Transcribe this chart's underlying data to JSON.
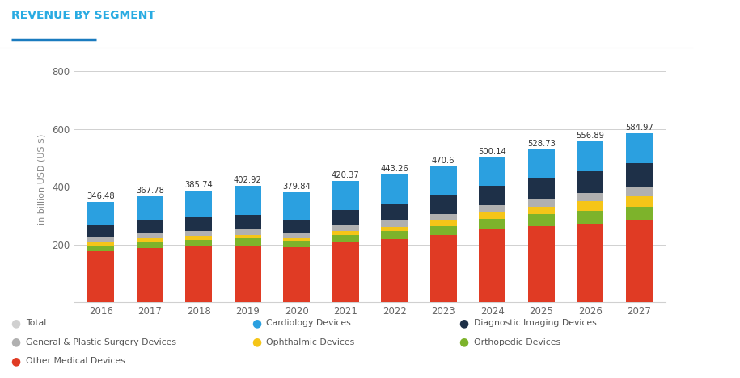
{
  "years": [
    2016,
    2017,
    2018,
    2019,
    2020,
    2021,
    2022,
    2023,
    2024,
    2025,
    2026,
    2027
  ],
  "totals": [
    346.48,
    367.78,
    385.74,
    402.92,
    379.84,
    420.37,
    443.26,
    470.6,
    500.14,
    528.73,
    556.89,
    584.97
  ],
  "segments": {
    "Other Medical Devices": [
      178,
      188,
      194,
      198,
      190,
      208,
      218,
      232,
      252,
      263,
      272,
      282
    ],
    "Orthopedic Devices": [
      20,
      21,
      22,
      23,
      21,
      25,
      28,
      33,
      38,
      42,
      46,
      50
    ],
    "Ophthalmic Devices": [
      11,
      12,
      13,
      13,
      12,
      14,
      16,
      19,
      22,
      26,
      31,
      36
    ],
    "General & Plastic Surgery Devices": [
      16,
      17,
      18,
      19,
      17,
      20,
      21,
      23,
      25,
      27,
      29,
      31
    ],
    "Diagnostic Imaging Devices": [
      43,
      45,
      48,
      50,
      46,
      52,
      57,
      62,
      67,
      72,
      77,
      82
    ],
    "Cardiology Devices": [
      78.48,
      84.78,
      90.74,
      99.92,
      93.84,
      101.37,
      103.26,
      101.6,
      96.14,
      98.73,
      101.89,
      103.97
    ]
  },
  "colors": {
    "Other Medical Devices": "#e03b24",
    "Orthopedic Devices": "#7db32b",
    "Ophthalmic Devices": "#f5c518",
    "General & Plastic Surgery Devices": "#b0b0b0",
    "Diagnostic Imaging Devices": "#1e3048",
    "Cardiology Devices": "#2ba0e0"
  },
  "title": "REVENUE BY SEGMENT",
  "title_color": "#29abe2",
  "title_underline_color": "#1a7bbf",
  "ylabel": "in billion USD (US $)",
  "ylim": [
    0,
    850
  ],
  "yticks": [
    0,
    200,
    400,
    600,
    800
  ],
  "bg_color": "#ffffff",
  "grid_color": "#d0d0d0",
  "legend_col1": [
    "Total",
    "General & Plastic Surgery Devices",
    "Other Medical Devices"
  ],
  "legend_col1_colors": [
    "#d0d0d0",
    "#b0b0b0",
    "#e03b24"
  ],
  "legend_col2": [
    "Cardiology Devices",
    "Ophthalmic Devices"
  ],
  "legend_col2_colors": [
    "#2ba0e0",
    "#f5c518"
  ],
  "legend_col3": [
    "Diagnostic Imaging Devices",
    "Orthopedic Devices"
  ],
  "legend_col3_colors": [
    "#1e3048",
    "#7db32b"
  ]
}
